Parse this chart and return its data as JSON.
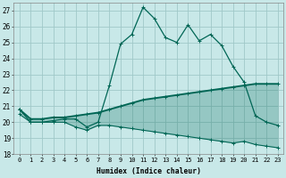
{
  "xlabel": "Humidex (Indice chaleur)",
  "xlim": [
    -0.5,
    23.5
  ],
  "ylim": [
    18,
    27.5
  ],
  "yticks": [
    18,
    19,
    20,
    21,
    22,
    23,
    24,
    25,
    26,
    27
  ],
  "xticks": [
    0,
    1,
    2,
    3,
    4,
    5,
    6,
    7,
    8,
    9,
    10,
    11,
    12,
    13,
    14,
    15,
    16,
    17,
    18,
    19,
    20,
    21,
    22,
    23
  ],
  "bg_color": "#c8e8e8",
  "grid_color": "#a0c8c8",
  "line_color": "#006655",
  "humidex_line": [
    20.8,
    20.0,
    20.0,
    20.1,
    20.2,
    20.2,
    19.7,
    20.0,
    22.3,
    24.9,
    25.5,
    27.2,
    26.5,
    25.3,
    25.0,
    26.1,
    25.1,
    25.5,
    24.8,
    23.5,
    22.5,
    20.4,
    20.0,
    19.8
  ],
  "max_line": [
    20.8,
    20.2,
    20.2,
    20.3,
    20.3,
    20.4,
    20.5,
    20.6,
    20.8,
    21.0,
    21.2,
    21.4,
    21.5,
    21.6,
    21.7,
    21.8,
    21.9,
    22.0,
    22.1,
    22.2,
    22.3,
    22.4,
    22.4,
    22.4
  ],
  "min_line": [
    20.5,
    20.0,
    20.0,
    20.0,
    20.0,
    19.7,
    19.5,
    19.8,
    19.8,
    19.7,
    19.6,
    19.5,
    19.4,
    19.3,
    19.2,
    19.1,
    19.0,
    18.9,
    18.8,
    18.7,
    18.8,
    18.6,
    18.5,
    18.4
  ]
}
